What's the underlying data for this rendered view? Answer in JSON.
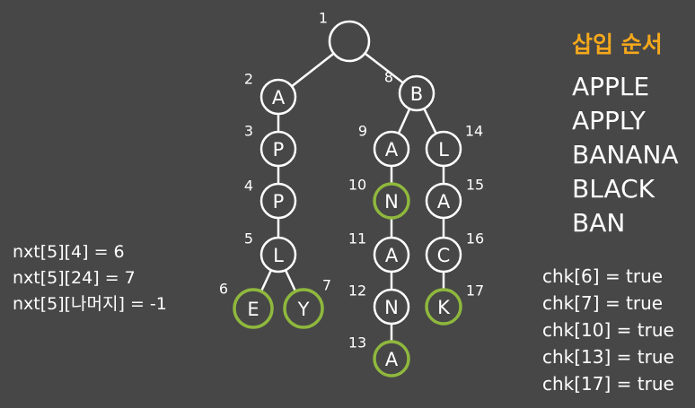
{
  "title": "삽입 순서",
  "words": [
    "APPLE",
    "APPLY",
    "BANANA",
    "BLACK",
    "BAN"
  ],
  "nxt_lines": [
    "nxt[5][4] = 6",
    "nxt[5][24] = 7",
    "nxt[5][나머지] = -1"
  ],
  "chk_lines": [
    "chk[6] = true",
    "chk[7] = true",
    "chk[10] = true",
    "chk[13] = true",
    "chk[17] = true"
  ],
  "colors": {
    "background": "#474747",
    "title": "#f5a81c",
    "terminal_ring": "#8fb83d",
    "node_ring": "#ffffff"
  },
  "trie": {
    "nodes": [
      {
        "id": "1",
        "letter": "",
        "terminal": false
      },
      {
        "id": "2",
        "letter": "A",
        "terminal": false
      },
      {
        "id": "3",
        "letter": "P",
        "terminal": false
      },
      {
        "id": "4",
        "letter": "P",
        "terminal": false
      },
      {
        "id": "5",
        "letter": "L",
        "terminal": false
      },
      {
        "id": "6",
        "letter": "E",
        "terminal": true
      },
      {
        "id": "7",
        "letter": "Y",
        "terminal": true
      },
      {
        "id": "8",
        "letter": "B",
        "terminal": false
      },
      {
        "id": "9",
        "letter": "A",
        "terminal": false
      },
      {
        "id": "10",
        "letter": "N",
        "terminal": true
      },
      {
        "id": "11",
        "letter": "A",
        "terminal": false
      },
      {
        "id": "12",
        "letter": "N",
        "terminal": false
      },
      {
        "id": "13",
        "letter": "A",
        "terminal": true
      },
      {
        "id": "14",
        "letter": "L",
        "terminal": false
      },
      {
        "id": "15",
        "letter": "A",
        "terminal": false
      },
      {
        "id": "16",
        "letter": "C",
        "terminal": false
      },
      {
        "id": "17",
        "letter": "K",
        "terminal": true
      }
    ],
    "edges": [
      [
        "1",
        "2"
      ],
      [
        "1",
        "8"
      ],
      [
        "2",
        "3"
      ],
      [
        "3",
        "4"
      ],
      [
        "4",
        "5"
      ],
      [
        "5",
        "6"
      ],
      [
        "5",
        "7"
      ],
      [
        "8",
        "9"
      ],
      [
        "8",
        "14"
      ],
      [
        "9",
        "10"
      ],
      [
        "10",
        "11"
      ],
      [
        "11",
        "12"
      ],
      [
        "12",
        "13"
      ],
      [
        "14",
        "15"
      ],
      [
        "15",
        "16"
      ],
      [
        "16",
        "17"
      ]
    ]
  }
}
